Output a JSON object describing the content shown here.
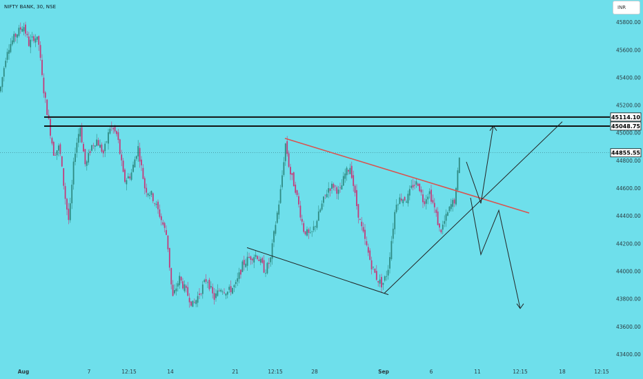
{
  "header": {
    "symbol": "NIFTY BANK, 30, NSE",
    "currency": "INR"
  },
  "colors": {
    "background": "#6edfeb",
    "candle_up": "#2f8a82",
    "candle_down": "#c43a7a",
    "trend_red": "#d9534f",
    "line_dark": "#1a1a1a"
  },
  "chart_data": {
    "type": "candlestick",
    "title": "NIFTY BANK, 30, NSE",
    "y_axis": {
      "ticks": [
        "45800.00",
        "45600.00",
        "45400.00",
        "45200.00",
        "45000.00",
        "44800.00",
        "44600.00",
        "44400.00",
        "44200.00",
        "44000.00",
        "43800.00",
        "43600.00",
        "43400.00"
      ],
      "range": [
        43320,
        45960
      ]
    },
    "x_axis": {
      "ticks": [
        "Aug",
        "7",
        "12:15",
        "14",
        "21",
        "12:15",
        "28",
        "Sep",
        "6",
        "11",
        "12:15",
        "18",
        "12:15"
      ]
    },
    "price_labels": [
      {
        "label": "45114.10",
        "value": 45114.1
      },
      {
        "label": "45048.75",
        "value": 45048.75
      },
      {
        "label": "44855.55",
        "value": 44855.55,
        "current": true
      }
    ],
    "resistance_lines": [
      45114.1,
      45048.75
    ],
    "price_path": [
      [
        0,
        45300
      ],
      [
        10,
        45600
      ],
      [
        22,
        45700
      ],
      [
        34,
        45780
      ],
      [
        42,
        45640
      ],
      [
        50,
        45700
      ],
      [
        56,
        45650
      ],
      [
        62,
        45350
      ],
      [
        70,
        45100
      ],
      [
        78,
        44850
      ],
      [
        86,
        44900
      ],
      [
        94,
        44550
      ],
      [
        100,
        44350
      ],
      [
        108,
        44850
      ],
      [
        116,
        45050
      ],
      [
        124,
        44750
      ],
      [
        132,
        44900
      ],
      [
        140,
        44950
      ],
      [
        150,
        44850
      ],
      [
        160,
        45050
      ],
      [
        170,
        44980
      ],
      [
        180,
        44650
      ],
      [
        190,
        44700
      ],
      [
        200,
        44900
      ],
      [
        210,
        44600
      ],
      [
        220,
        44550
      ],
      [
        232,
        44400
      ],
      [
        242,
        44250
      ],
      [
        250,
        43800
      ],
      [
        260,
        43950
      ],
      [
        270,
        43850
      ],
      [
        280,
        43750
      ],
      [
        290,
        43850
      ],
      [
        300,
        43950
      ],
      [
        310,
        43800
      ],
      [
        320,
        43880
      ],
      [
        330,
        43850
      ],
      [
        342,
        43900
      ],
      [
        352,
        44050
      ],
      [
        362,
        44100
      ],
      [
        372,
        44120
      ],
      [
        384,
        44000
      ],
      [
        392,
        44080
      ],
      [
        398,
        44300
      ],
      [
        406,
        44550
      ],
      [
        414,
        44930
      ],
      [
        420,
        44720
      ],
      [
        428,
        44600
      ],
      [
        434,
        44450
      ],
      [
        440,
        44300
      ],
      [
        450,
        44250
      ],
      [
        460,
        44380
      ],
      [
        468,
        44500
      ],
      [
        476,
        44600
      ],
      [
        484,
        44620
      ],
      [
        492,
        44560
      ],
      [
        500,
        44700
      ],
      [
        508,
        44760
      ],
      [
        516,
        44500
      ],
      [
        522,
        44350
      ],
      [
        530,
        44200
      ],
      [
        538,
        44050
      ],
      [
        546,
        43950
      ],
      [
        554,
        43900
      ],
      [
        562,
        44000
      ],
      [
        568,
        44250
      ],
      [
        574,
        44500
      ],
      [
        582,
        44530
      ],
      [
        590,
        44520
      ],
      [
        598,
        44620
      ],
      [
        606,
        44640
      ],
      [
        614,
        44500
      ],
      [
        622,
        44580
      ],
      [
        630,
        44450
      ],
      [
        638,
        44280
      ],
      [
        646,
        44380
      ],
      [
        654,
        44480
      ],
      [
        660,
        44520
      ],
      [
        666,
        44850
      ]
    ]
  },
  "drawings": {
    "red_trendline": {
      "x": [
        413,
        767
      ],
      "y": [
        44960,
        44420
      ]
    },
    "falling_support": {
      "x": [
        358,
        563
      ],
      "y": [
        44170,
        43830
      ]
    },
    "rising_support": {
      "x": [
        557,
        815
      ],
      "y": [
        43840,
        45080
      ]
    },
    "projection_bull": {
      "y": [
        44790,
        44490,
        45050
      ]
    },
    "projection_bear": {
      "y": [
        44530,
        44120,
        44440,
        43730
      ]
    }
  }
}
